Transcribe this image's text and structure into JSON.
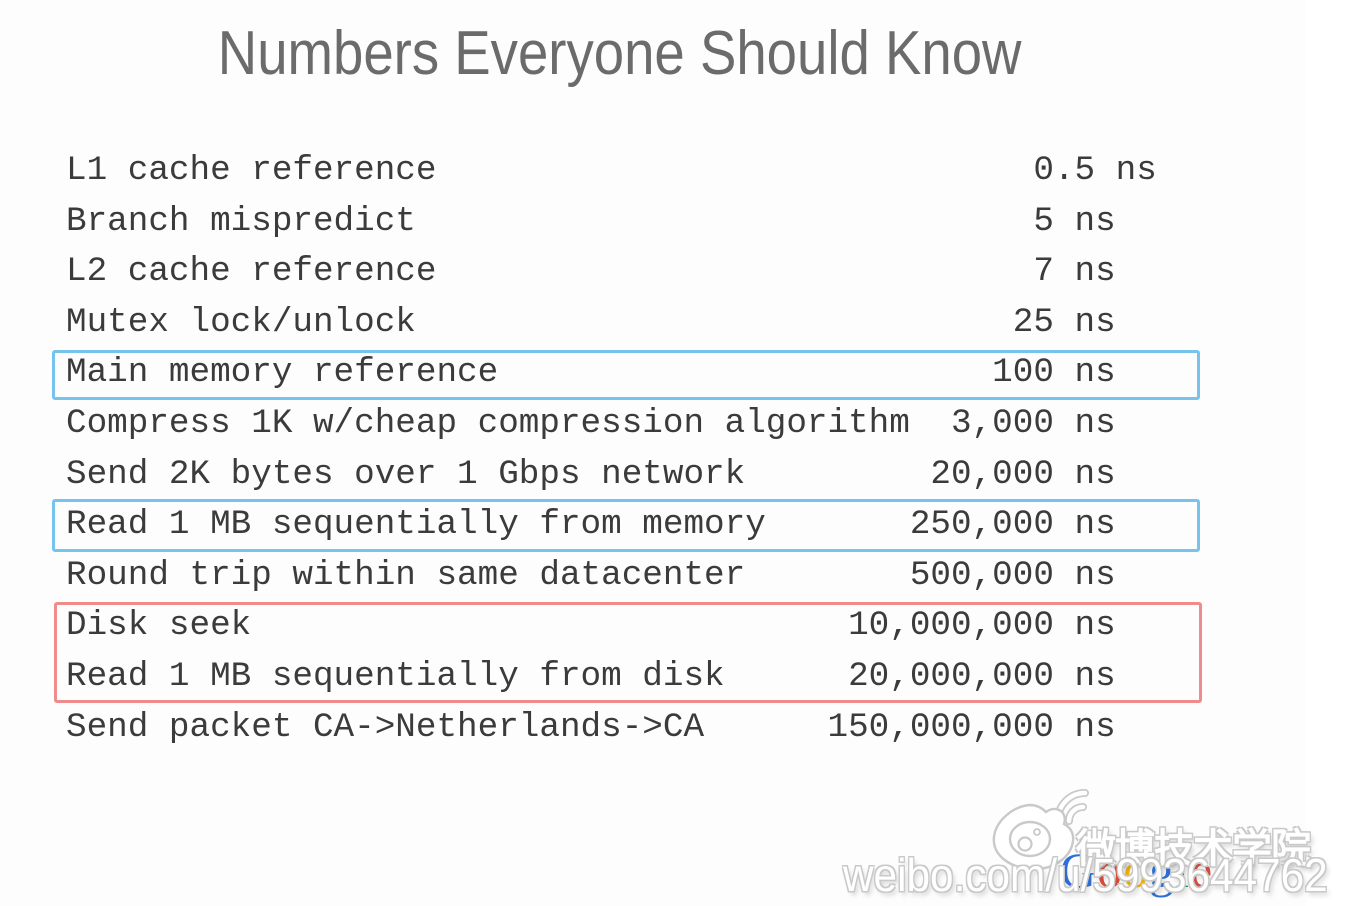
{
  "title": "Numbers Everyone Should Know",
  "table": {
    "unit": "ns",
    "rows": [
      {
        "label": "L1 cache reference",
        "value": "0.5",
        "highlight": null
      },
      {
        "label": "Branch mispredict",
        "value": "5",
        "highlight": null
      },
      {
        "label": "L2 cache reference",
        "value": "7",
        "highlight": null
      },
      {
        "label": "Mutex lock/unlock",
        "value": "25",
        "highlight": null
      },
      {
        "label": "Main memory reference",
        "value": "100",
        "highlight": "blue"
      },
      {
        "label": "Compress 1K w/cheap compression algorithm",
        "value": "3,000",
        "highlight": null
      },
      {
        "label": "Send 2K bytes over 1 Gbps network",
        "value": "20,000",
        "highlight": null
      },
      {
        "label": "Read 1 MB sequentially from memory",
        "value": "250,000",
        "highlight": "blue"
      },
      {
        "label": "Round trip within same datacenter",
        "value": "500,000",
        "highlight": null
      },
      {
        "label": "Disk seek",
        "value": "10,000,000",
        "highlight": "red"
      },
      {
        "label": "Read 1 MB sequentially from disk",
        "value": "20,000,000",
        "highlight": "red"
      },
      {
        "label": "Send packet CA->Netherlands->CA",
        "value": "150,000,000",
        "highlight": null
      }
    ]
  },
  "colors": {
    "highlight_blue": "#76c4ec",
    "highlight_red": "#f08b8b",
    "title_text": "#6b6b6b",
    "table_text": "#3b3b3b",
    "watermark_outline": "#c9c9c9"
  },
  "watermark": {
    "weibo_academy_text": "微博技术学院",
    "weibo_url_text": "weibo.com/u/5993644762",
    "weibo_logo_icon": "weibo-eye-icon"
  },
  "google_logo": {
    "text": "Google",
    "letters": [
      {
        "ch": "G",
        "color": "#2a6fdb"
      },
      {
        "ch": "o",
        "color": "#dd4b39"
      },
      {
        "ch": "o",
        "color": "#f4b400"
      },
      {
        "ch": "g",
        "color": "#2a6fdb"
      },
      {
        "ch": "l",
        "color": "#0f9d58"
      },
      {
        "ch": "e",
        "color": "#dd4b39"
      }
    ]
  }
}
